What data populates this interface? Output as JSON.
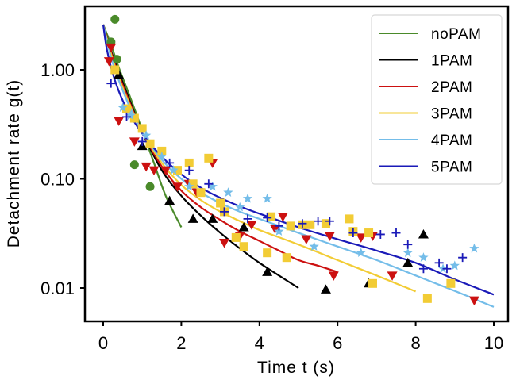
{
  "chart_data": {
    "type": "scatter",
    "title": "",
    "xlabel": "Time t (s)",
    "ylabel": "Detachment rate g(t)",
    "xlim": [
      -0.45,
      10.4
    ],
    "ylim": [
      0.005,
      3.8
    ],
    "yscale": "log",
    "xticks": [
      0,
      2,
      4,
      6,
      8,
      10
    ],
    "xtick_labels": [
      "0",
      "2",
      "4",
      "6",
      "8",
      "10"
    ],
    "yticks": [
      0.01,
      0.1,
      1.0
    ],
    "ytick_labels": [
      "0.01",
      "0.10",
      "1.00"
    ],
    "grid": false,
    "legend_position": "top-right",
    "series": [
      {
        "name": "noPAM",
        "color": "#4a8a2a",
        "marker": "circle",
        "points": [
          [
            0.3,
            2.9
          ],
          [
            0.2,
            1.8
          ],
          [
            0.35,
            1.25
          ],
          [
            0.8,
            0.135
          ],
          [
            1.2,
            0.085
          ]
        ],
        "fit": [
          [
            0,
            2.6
          ],
          [
            0.2,
            1.7
          ],
          [
            0.4,
            1.05
          ],
          [
            0.7,
            0.55
          ],
          [
            1.0,
            0.28
          ],
          [
            1.3,
            0.14
          ],
          [
            1.6,
            0.07
          ],
          [
            2.0,
            0.036
          ]
        ]
      },
      {
        "name": "1PAM",
        "color": "#000000",
        "marker": "triangle-up",
        "points": [
          [
            0.4,
            0.9
          ],
          [
            1.0,
            0.2
          ],
          [
            1.7,
            0.063
          ],
          [
            2.3,
            0.043
          ],
          [
            2.8,
            0.043
          ],
          [
            3.6,
            0.036
          ],
          [
            4.2,
            0.014
          ],
          [
            5.7,
            0.0097
          ],
          [
            6.8,
            0.011
          ],
          [
            7.8,
            0.017
          ],
          [
            8.2,
            0.031
          ]
        ],
        "fit": [
          [
            0,
            2.6
          ],
          [
            0.2,
            1.5
          ],
          [
            0.4,
            0.95
          ],
          [
            0.7,
            0.5
          ],
          [
            1.0,
            0.27
          ],
          [
            1.5,
            0.12
          ],
          [
            2.0,
            0.07
          ],
          [
            2.5,
            0.046
          ],
          [
            3.0,
            0.032
          ],
          [
            3.5,
            0.023
          ],
          [
            4.0,
            0.017
          ],
          [
            4.5,
            0.013
          ],
          [
            5.0,
            0.01
          ]
        ]
      },
      {
        "name": "2PAM",
        "color": "#cc1111",
        "marker": "triangle-down",
        "points": [
          [
            0.2,
            1.6
          ],
          [
            0.15,
            1.2
          ],
          [
            0.4,
            0.34
          ],
          [
            0.8,
            0.22
          ],
          [
            1.1,
            0.13
          ],
          [
            1.3,
            0.12
          ],
          [
            1.6,
            0.12
          ],
          [
            1.9,
            0.085
          ],
          [
            2.2,
            0.09
          ],
          [
            2.4,
            0.075
          ],
          [
            2.8,
            0.14
          ],
          [
            3.1,
            0.026
          ],
          [
            3.5,
            0.03
          ],
          [
            3.8,
            0.038
          ],
          [
            4.4,
            0.035
          ],
          [
            4.6,
            0.045
          ],
          [
            5.2,
            0.028
          ],
          [
            5.8,
            0.03
          ],
          [
            5.9,
            0.013
          ],
          [
            6.6,
            0.029
          ],
          [
            6.9,
            0.03
          ],
          [
            7.4,
            0.013
          ],
          [
            9.5,
            0.0077
          ]
        ],
        "fit": [
          [
            0,
            2.6
          ],
          [
            0.2,
            1.45
          ],
          [
            0.4,
            0.9
          ],
          [
            0.7,
            0.48
          ],
          [
            1.0,
            0.27
          ],
          [
            1.5,
            0.13
          ],
          [
            2.0,
            0.078
          ],
          [
            2.5,
            0.055
          ],
          [
            3.0,
            0.042
          ],
          [
            3.5,
            0.033
          ],
          [
            4.0,
            0.027
          ],
          [
            4.5,
            0.022
          ],
          [
            5.0,
            0.018
          ],
          [
            5.5,
            0.016
          ],
          [
            6.0,
            0.014
          ]
        ]
      },
      {
        "name": "3PAM",
        "color": "#f2cc35",
        "marker": "square",
        "points": [
          [
            0.3,
            1.0
          ],
          [
            0.6,
            0.44
          ],
          [
            0.8,
            0.36
          ],
          [
            1.0,
            0.29
          ],
          [
            1.2,
            0.21
          ],
          [
            1.5,
            0.18
          ],
          [
            1.9,
            0.12
          ],
          [
            2.2,
            0.14
          ],
          [
            2.3,
            0.09
          ],
          [
            2.5,
            0.075
          ],
          [
            2.7,
            0.155
          ],
          [
            3.0,
            0.06
          ],
          [
            3.1,
            0.05
          ],
          [
            3.4,
            0.029
          ],
          [
            3.6,
            0.024
          ],
          [
            4.2,
            0.021
          ],
          [
            4.7,
            0.019
          ],
          [
            4.3,
            0.045
          ],
          [
            4.8,
            0.037
          ],
          [
            5.1,
            0.038
          ],
          [
            5.3,
            0.038
          ],
          [
            5.7,
            0.039
          ],
          [
            6.3,
            0.043
          ],
          [
            6.4,
            0.033
          ],
          [
            6.8,
            0.032
          ],
          [
            6.9,
            0.011
          ],
          [
            8.3,
            0.008
          ],
          [
            8.9,
            0.011
          ]
        ],
        "fit": [
          [
            0,
            2.6
          ],
          [
            0.2,
            1.4
          ],
          [
            0.4,
            0.85
          ],
          [
            0.7,
            0.46
          ],
          [
            1.0,
            0.27
          ],
          [
            1.5,
            0.14
          ],
          [
            2.0,
            0.088
          ],
          [
            2.5,
            0.064
          ],
          [
            3.0,
            0.05
          ],
          [
            3.5,
            0.041
          ],
          [
            4.0,
            0.034
          ],
          [
            5.0,
            0.025
          ],
          [
            6.0,
            0.018
          ],
          [
            7.0,
            0.013
          ],
          [
            8.0,
            0.0093
          ]
        ]
      },
      {
        "name": "4PAM",
        "color": "#74bde9",
        "marker": "star",
        "points": [
          [
            0.5,
            0.45
          ],
          [
            0.7,
            0.38
          ],
          [
            1.1,
            0.25
          ],
          [
            1.5,
            0.16
          ],
          [
            1.8,
            0.12
          ],
          [
            2.2,
            0.085
          ],
          [
            2.8,
            0.085
          ],
          [
            3.2,
            0.075
          ],
          [
            3.7,
            0.066
          ],
          [
            3.5,
            0.055
          ],
          [
            4.2,
            0.066
          ],
          [
            4.5,
            0.033
          ],
          [
            5.4,
            0.024
          ],
          [
            6.6,
            0.021
          ],
          [
            7.8,
            0.021
          ],
          [
            8.2,
            0.019
          ],
          [
            8.7,
            0.015
          ],
          [
            9.0,
            0.016
          ],
          [
            9.5,
            0.023
          ]
        ],
        "fit": [
          [
            0,
            2.6
          ],
          [
            0.2,
            1.3
          ],
          [
            0.4,
            0.8
          ],
          [
            0.7,
            0.44
          ],
          [
            1.0,
            0.27
          ],
          [
            1.5,
            0.15
          ],
          [
            2.0,
            0.1
          ],
          [
            2.5,
            0.075
          ],
          [
            3.0,
            0.06
          ],
          [
            3.5,
            0.05
          ],
          [
            4.0,
            0.043
          ],
          [
            5.0,
            0.032
          ],
          [
            6.0,
            0.024
          ],
          [
            7.0,
            0.018
          ],
          [
            8.0,
            0.013
          ],
          [
            9.0,
            0.0094
          ],
          [
            10.0,
            0.0067
          ]
        ]
      },
      {
        "name": "5PAM",
        "color": "#1a1ab8",
        "marker": "plus",
        "points": [
          [
            0.2,
            0.75
          ],
          [
            0.6,
            0.37
          ],
          [
            1.0,
            0.22
          ],
          [
            1.7,
            0.14
          ],
          [
            2.2,
            0.12
          ],
          [
            2.7,
            0.09
          ],
          [
            3.1,
            0.05
          ],
          [
            3.7,
            0.043
          ],
          [
            4.2,
            0.044
          ],
          [
            4.5,
            0.037
          ],
          [
            5.1,
            0.039
          ],
          [
            5.5,
            0.041
          ],
          [
            5.8,
            0.041
          ],
          [
            6.4,
            0.032
          ],
          [
            7.1,
            0.031
          ],
          [
            7.5,
            0.032
          ],
          [
            7.8,
            0.025
          ],
          [
            8.2,
            0.015
          ],
          [
            8.6,
            0.017
          ],
          [
            8.8,
            0.015
          ],
          [
            9.2,
            0.019
          ]
        ],
        "fit": [
          [
            0,
            2.6
          ],
          [
            0.1,
            1.5
          ],
          [
            0.3,
            0.8
          ],
          [
            0.6,
            0.44
          ],
          [
            1.0,
            0.26
          ],
          [
            1.5,
            0.16
          ],
          [
            2.0,
            0.11
          ],
          [
            2.5,
            0.083
          ],
          [
            3.0,
            0.067
          ],
          [
            3.5,
            0.056
          ],
          [
            4.0,
            0.048
          ],
          [
            5.0,
            0.036
          ],
          [
            6.0,
            0.028
          ],
          [
            7.0,
            0.022
          ],
          [
            8.0,
            0.017
          ],
          [
            9.0,
            0.012
          ],
          [
            10.0,
            0.0087
          ]
        ]
      }
    ]
  }
}
